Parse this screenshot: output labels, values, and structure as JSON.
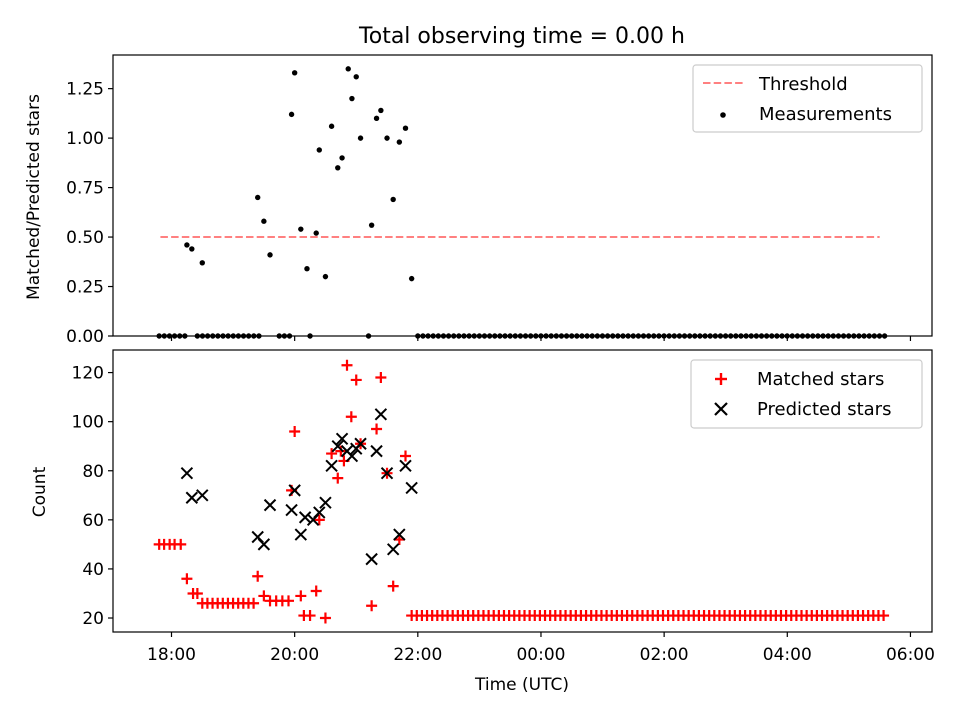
{
  "title": "Total observing time = 0.00 h",
  "chart_data": [
    {
      "type": "scatter",
      "ylabel": "Matched/Predicted stars",
      "ylim": [
        0,
        1.42
      ],
      "yticks": [
        0.0,
        0.25,
        0.5,
        0.75,
        1.0,
        1.25
      ],
      "ytick_labels": [
        "0.00",
        "0.25",
        "0.50",
        "0.75",
        "1.00",
        "1.25"
      ],
      "xlim": [
        -0.95,
        12.35
      ],
      "xticks": [
        0,
        2,
        4,
        6,
        8,
        10,
        12
      ],
      "threshold": {
        "x": [
          -0.18,
          11.5
        ],
        "y": 0.5
      },
      "legend": [
        "Threshold",
        "Measurements"
      ],
      "legend_position": "top-right",
      "series": [
        {
          "name": "Measurements",
          "points": [
            [
              0.25,
              0.46
            ],
            [
              0.33,
              0.44
            ],
            [
              0.5,
              0.37
            ],
            [
              1.4,
              0.7
            ],
            [
              1.5,
              0.58
            ],
            [
              1.6,
              0.41
            ],
            [
              1.95,
              1.12
            ],
            [
              2.0,
              1.33
            ],
            [
              2.1,
              0.54
            ],
            [
              2.2,
              0.34
            ],
            [
              2.35,
              0.52
            ],
            [
              2.4,
              0.94
            ],
            [
              2.5,
              0.3
            ],
            [
              2.6,
              1.06
            ],
            [
              2.7,
              0.85
            ],
            [
              2.77,
              0.9
            ],
            [
              2.87,
              1.35
            ],
            [
              2.93,
              1.2
            ],
            [
              3.0,
              1.31
            ],
            [
              3.07,
              1.0
            ],
            [
              3.25,
              0.56
            ],
            [
              3.33,
              1.1
            ],
            [
              3.4,
              1.14
            ],
            [
              3.5,
              1.0
            ],
            [
              3.6,
              0.69
            ],
            [
              3.7,
              0.98
            ],
            [
              3.8,
              1.05
            ],
            [
              3.9,
              0.29
            ],
            [
              3.2,
              0.0
            ]
          ],
          "zero_runs": [
            {
              "x_start": -0.2,
              "x_end": 0.2,
              "step": 0.0833
            },
            {
              "x_start": 0.42,
              "x_end": 1.4,
              "step": 0.0833
            },
            {
              "x_start": 1.75,
              "x_end": 1.95,
              "step": 0.0833
            },
            {
              "x_start": 2.25,
              "x_end": 2.25,
              "step": 0.0833
            },
            {
              "x_start": 4.0,
              "x_end": 11.6,
              "step": 0.0833
            }
          ]
        }
      ]
    },
    {
      "type": "scatter",
      "ylabel": "Count",
      "xlabel": "Time (UTC)",
      "ylim": [
        14.3,
        129.2
      ],
      "yticks": [
        20,
        40,
        60,
        80,
        100,
        120
      ],
      "xlim": [
        -0.95,
        12.35
      ],
      "xticks": [
        0,
        2,
        4,
        6,
        8,
        10,
        12
      ],
      "xtick_labels": [
        "18:00",
        "20:00",
        "22:00",
        "00:00",
        "02:00",
        "04:00",
        "06:00"
      ],
      "legend": [
        "Matched stars",
        "Predicted stars"
      ],
      "legend_position": "top-right",
      "series": [
        {
          "name": "Matched stars",
          "points": [
            [
              -0.2,
              50
            ],
            [
              -0.12,
              50
            ],
            [
              -0.03,
              50
            ],
            [
              0.05,
              50
            ],
            [
              0.15,
              50
            ],
            [
              0.25,
              36
            ],
            [
              0.35,
              30
            ],
            [
              0.42,
              30
            ],
            [
              1.4,
              37
            ],
            [
              1.5,
              29
            ],
            [
              1.6,
              27
            ],
            [
              1.7,
              27
            ],
            [
              1.8,
              27
            ],
            [
              1.9,
              27
            ],
            [
              1.95,
              72
            ],
            [
              2.0,
              96
            ],
            [
              2.1,
              29
            ],
            [
              2.15,
              21
            ],
            [
              2.25,
              21
            ],
            [
              2.35,
              31
            ],
            [
              2.4,
              60
            ],
            [
              2.5,
              20
            ],
            [
              2.6,
              87
            ],
            [
              2.7,
              77
            ],
            [
              2.75,
              88
            ],
            [
              2.8,
              84
            ],
            [
              2.85,
              123
            ],
            [
              2.92,
              102
            ],
            [
              3.0,
              117
            ],
            [
              3.07,
              91
            ],
            [
              3.25,
              25
            ],
            [
              3.33,
              97
            ],
            [
              3.4,
              118
            ],
            [
              3.5,
              79
            ],
            [
              3.6,
              33
            ],
            [
              3.7,
              52
            ],
            [
              3.8,
              86
            ]
          ],
          "runs": [
            {
              "x_start": 0.5,
              "x_end": 1.33,
              "step": 0.0833,
              "y": 26
            },
            {
              "x_start": 3.9,
              "x_end": 11.6,
              "step": 0.0833,
              "y": 21
            }
          ]
        },
        {
          "name": "Predicted stars",
          "points": [
            [
              0.25,
              79
            ],
            [
              0.33,
              69
            ],
            [
              0.5,
              70
            ],
            [
              1.4,
              53
            ],
            [
              1.5,
              50
            ],
            [
              1.6,
              66
            ],
            [
              1.95,
              64
            ],
            [
              2.0,
              72
            ],
            [
              2.1,
              54
            ],
            [
              2.17,
              61
            ],
            [
              2.3,
              60
            ],
            [
              2.4,
              63
            ],
            [
              2.5,
              67
            ],
            [
              2.6,
              82
            ],
            [
              2.7,
              90
            ],
            [
              2.77,
              93
            ],
            [
              2.85,
              88
            ],
            [
              2.93,
              86
            ],
            [
              3.0,
              89
            ],
            [
              3.07,
              91
            ],
            [
              3.25,
              44
            ],
            [
              3.33,
              88
            ],
            [
              3.4,
              103
            ],
            [
              3.5,
              79
            ],
            [
              3.6,
              48
            ],
            [
              3.7,
              54
            ],
            [
              3.8,
              82
            ],
            [
              3.9,
              73
            ]
          ]
        }
      ]
    }
  ],
  "colors": {
    "threshold": "#ff8080",
    "measurements": "#000000",
    "matched": "#ff0000",
    "predicted": "#000000"
  }
}
